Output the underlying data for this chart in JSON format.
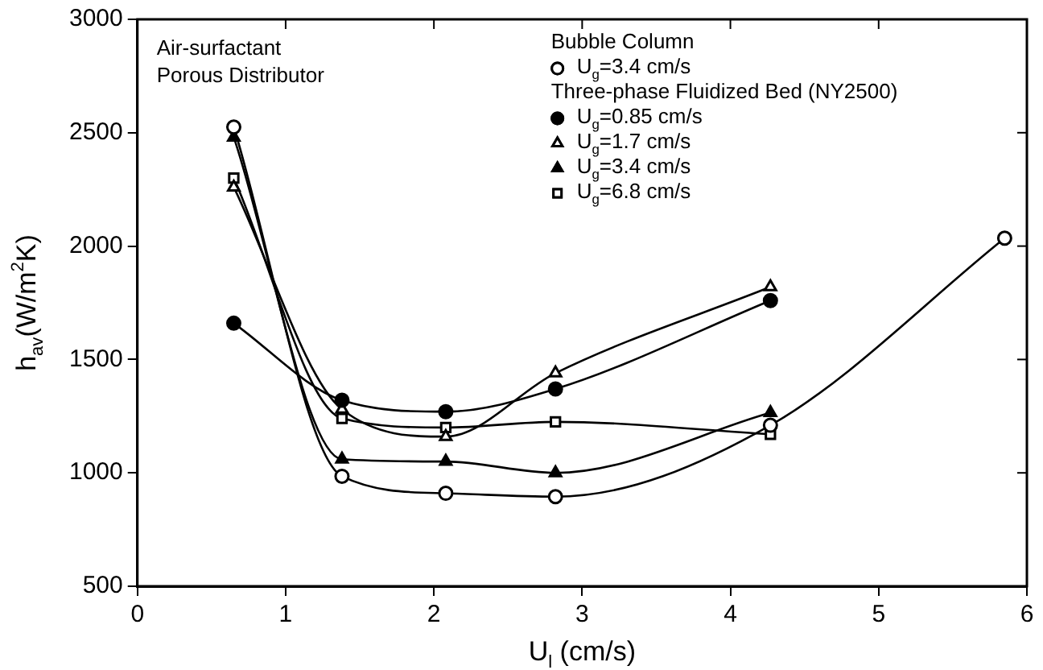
{
  "chart_data": {
    "type": "line",
    "xlabel": "U$_{l}$ (cm/s)",
    "ylabel": "h$_{av}$(W/m$^{2}$K)",
    "annotations": [
      "Air-surfactant",
      "Porous Distributor",
      "Bubble Column",
      "Three-phase Fluidized Bed (NY2500)"
    ],
    "xlim": [
      0,
      6
    ],
    "xticks": [
      0,
      1,
      2,
      3,
      4,
      5,
      6
    ],
    "ylim": [
      500,
      3000
    ],
    "yticks": [
      500,
      1000,
      1500,
      2000,
      2500,
      3000
    ],
    "grid": false,
    "legend": "top right",
    "line_style": "solid",
    "series": [
      {
        "name": "U$_{g}$=3.4 cm/s",
        "color": "#000000",
        "marker": "circle-open",
        "x": [
          0.65,
          1.38,
          2.08,
          2.82,
          4.27,
          5.85
        ],
        "values": [
          2525,
          985,
          910,
          895,
          1210,
          2035
        ]
      },
      {
        "name": "U$_{g}$=0.85 cm/s",
        "color": "#000000",
        "marker": "circle",
        "x": [
          0.65,
          1.38,
          2.08,
          2.82,
          4.27
        ],
        "values": [
          1660,
          1320,
          1270,
          1370,
          1760
        ]
      },
      {
        "name": "U$_{g}$=1.7 cm/s",
        "color": "#000000",
        "marker": "triangle-open",
        "x": [
          0.65,
          1.38,
          2.08,
          2.82,
          4.27
        ],
        "values": [
          2260,
          1280,
          1160,
          1440,
          1820
        ]
      },
      {
        "name": "U$_{g}$=3.4 cm/s",
        "color": "#000000",
        "marker": "triangle",
        "x": [
          0.65,
          1.38,
          2.08,
          2.82,
          4.27
        ],
        "values": [
          2480,
          1060,
          1050,
          1000,
          1265
        ]
      },
      {
        "name": "U$_{g}$=6.8 cm/s",
        "color": "#000000",
        "marker": "square-open",
        "x": [
          0.65,
          1.38,
          2.08,
          2.82,
          4.27
        ],
        "values": [
          2300,
          1240,
          1200,
          1225,
          1170
        ]
      }
    ]
  }
}
